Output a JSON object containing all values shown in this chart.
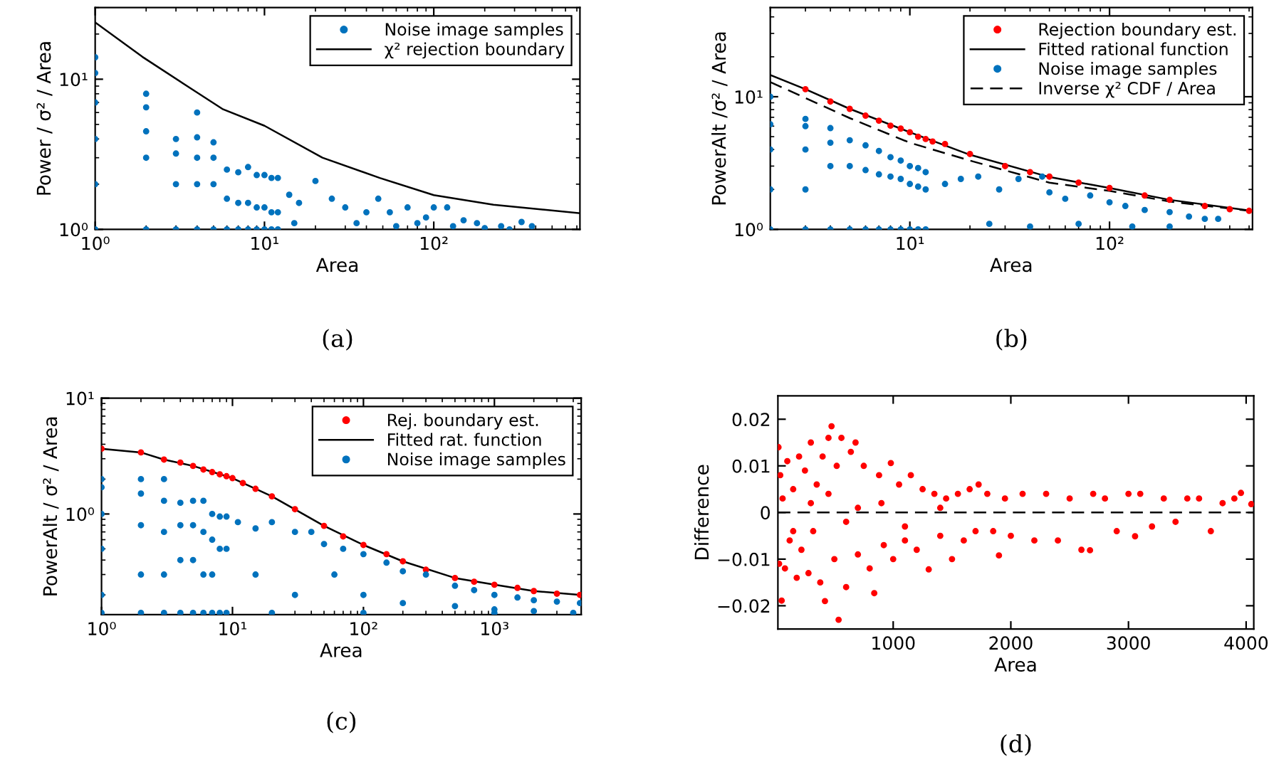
{
  "chart_data": [
    {
      "type": "scatter",
      "xlabel": "Area",
      "ylabel": "Power / σ² / Area",
      "log": "xy",
      "legend": "top right",
      "xlim": [
        1,
        730
      ],
      "ylim": [
        1,
        30
      ],
      "xticks": [
        {
          "value": 1,
          "label": "10⁰"
        },
        {
          "value": 10,
          "label": "10¹"
        },
        {
          "value": 100,
          "label": "10²"
        }
      ],
      "yticks": [
        {
          "value": 1,
          "label": "10⁰"
        },
        {
          "value": 10,
          "label": "10¹"
        }
      ],
      "annotations": [
        "(a)"
      ],
      "series": [
        {
          "name": "Noise image samples",
          "type": "scatter",
          "marker": "circle",
          "color": "#0072bd",
          "x": [
            1,
            1,
            1,
            1,
            1,
            1,
            2,
            2,
            2,
            2,
            2,
            3,
            3,
            3,
            3,
            4,
            4,
            4,
            4,
            4,
            5,
            5,
            5,
            5,
            6,
            6,
            6,
            7,
            7,
            7,
            8,
            8,
            8,
            9,
            9,
            9,
            10,
            10,
            10,
            11,
            11,
            11,
            12,
            12,
            12,
            14,
            16,
            20,
            25,
            30,
            40,
            47,
            55,
            70,
            90,
            100,
            120,
            150,
            180,
            250,
            330,
            380,
            15,
            35,
            60,
            80,
            130,
            200,
            280
          ],
          "values": [
            14,
            11,
            7,
            4,
            2,
            1,
            8,
            6.5,
            4.5,
            3,
            1,
            4.0,
            3.2,
            2,
            1,
            6.0,
            4.1,
            3.0,
            2,
            1,
            3.8,
            3.0,
            2,
            1,
            2.5,
            1.6,
            1,
            2.4,
            1.5,
            1,
            2.6,
            1.5,
            1,
            2.3,
            1.4,
            1,
            2.3,
            1.4,
            1,
            2.2,
            1.3,
            1,
            2.2,
            1.3,
            1,
            1.7,
            1.5,
            2.1,
            1.6,
            1.4,
            1.3,
            1.6,
            1.3,
            1.4,
            1.2,
            1.4,
            1.4,
            1.15,
            1.1,
            1.05,
            1.12,
            1.05,
            1.1,
            1.1,
            1.05,
            1.1,
            1.05,
            1.02,
            1.0
          ]
        },
        {
          "name": "χ² rejection boundary",
          "type": "line",
          "line_style": "solid",
          "color": "#000000",
          "x": [
            1,
            1.9,
            3.6,
            5.7,
            10,
            22,
            48,
            100,
            225,
            730
          ],
          "values": [
            23.9,
            14.1,
            8.8,
            6.3,
            4.9,
            3.0,
            2.2,
            1.69,
            1.46,
            1.28
          ]
        }
      ]
    },
    {
      "type": "scatter",
      "xlabel": "Area",
      "ylabel": "PowerAlt /σ² / Area",
      "log": "xy",
      "legend": "top right",
      "xlim": [
        2,
        520
      ],
      "ylim": [
        1,
        47
      ],
      "xticks": [
        {
          "value": 10,
          "label": "10¹"
        },
        {
          "value": 100,
          "label": "10²"
        }
      ],
      "yticks": [
        {
          "value": 1,
          "label": "10⁰"
        },
        {
          "value": 10,
          "label": "10¹"
        }
      ],
      "annotations": [
        "(b)"
      ],
      "series": [
        {
          "name": "Rejection boundary est.",
          "type": "scatter",
          "marker": "circle",
          "color": "#ff0000",
          "x": [
            3,
            4,
            5,
            6,
            7,
            8,
            9,
            10,
            11,
            12,
            13,
            15,
            20,
            30,
            40,
            50,
            70,
            100,
            150,
            200,
            300,
            400,
            500
          ],
          "values": [
            11.4,
            9.2,
            8.1,
            7.2,
            6.6,
            6.05,
            5.75,
            5.4,
            5.0,
            4.8,
            4.6,
            4.4,
            3.7,
            3.0,
            2.7,
            2.5,
            2.25,
            2.05,
            1.8,
            1.67,
            1.5,
            1.42,
            1.38
          ]
        },
        {
          "name": "Fitted rational function",
          "type": "line",
          "line_style": "solid",
          "color": "#000000",
          "x": [
            2,
            3,
            5,
            10,
            20,
            50,
            100,
            200,
            500
          ],
          "values": [
            14.6,
            11.4,
            8.1,
            5.4,
            3.65,
            2.48,
            2.05,
            1.67,
            1.39
          ]
        },
        {
          "name": "Noise image samples",
          "type": "scatter",
          "marker": "circle",
          "color": "#0072bd",
          "x": [
            2,
            2,
            2,
            2,
            2,
            3,
            3,
            3,
            3,
            3,
            4,
            4,
            4,
            4,
            5,
            5,
            5,
            6,
            6,
            6,
            7,
            7,
            7,
            8,
            8,
            8,
            9,
            9,
            9,
            10,
            10,
            10,
            11,
            11,
            11,
            12,
            12,
            12,
            15,
            18,
            22,
            28,
            35,
            46,
            50,
            60,
            80,
            100,
            120,
            150,
            200,
            250,
            300,
            350,
            25,
            40,
            70,
            130,
            200
          ],
          "values": [
            10,
            6.2,
            4,
            2,
            1,
            6.8,
            6.0,
            4,
            2,
            1,
            5.8,
            4.5,
            3,
            1,
            4.7,
            3,
            1,
            4.3,
            2.8,
            1,
            3.9,
            2.6,
            1,
            3.5,
            2.5,
            1,
            3.3,
            2.4,
            1,
            3.0,
            2.2,
            1,
            2.9,
            2.1,
            1,
            2.7,
            2.0,
            1,
            2.2,
            2.4,
            2.5,
            2.0,
            2.4,
            2.5,
            1.9,
            1.7,
            1.8,
            1.6,
            1.5,
            1.4,
            1.35,
            1.25,
            1.2,
            1.2,
            1.1,
            1.05,
            1.1,
            1.05,
            1.05
          ]
        },
        {
          "name": "Inverse χ² CDF / Area",
          "type": "line",
          "line_style": "dashed",
          "color": "#000000",
          "x": [
            2,
            5,
            10,
            20,
            50,
            100,
            200,
            500
          ],
          "values": [
            12.9,
            6.9,
            4.5,
            3.3,
            2.25,
            1.95,
            1.62,
            1.38
          ]
        }
      ]
    },
    {
      "type": "scatter",
      "xlabel": "Area",
      "ylabel": "PowerAlt / σ² / Area",
      "log": "xy",
      "legend": "top right",
      "xlim": [
        1,
        4600
      ],
      "ylim": [
        0.135,
        10
      ],
      "xticks": [
        {
          "value": 1,
          "label": "10⁰"
        },
        {
          "value": 10,
          "label": "10¹"
        },
        {
          "value": 100,
          "label": "10²"
        },
        {
          "value": 1000,
          "label": "10³"
        }
      ],
      "yticks": [
        {
          "value": 1,
          "label": "10⁰"
        },
        {
          "value": 10,
          "label": "10¹"
        }
      ],
      "annotations": [
        "(c)"
      ],
      "series": [
        {
          "name": "Rej. boundary est.",
          "type": "scatter",
          "marker": "circle",
          "color": "#ff0000",
          "x": [
            1,
            2,
            3,
            4,
            5,
            6,
            7,
            8,
            9,
            10,
            12,
            15,
            20,
            30,
            50,
            70,
            100,
            150,
            200,
            300,
            500,
            700,
            1000,
            1500,
            2000,
            3000,
            4500
          ],
          "values": [
            3.66,
            3.4,
            2.95,
            2.78,
            2.6,
            2.42,
            2.3,
            2.2,
            2.12,
            2.04,
            1.85,
            1.65,
            1.42,
            1.1,
            0.79,
            0.64,
            0.54,
            0.45,
            0.39,
            0.33,
            0.28,
            0.26,
            0.245,
            0.23,
            0.216,
            0.205,
            0.2
          ]
        },
        {
          "name": "Fitted rat. function",
          "type": "line",
          "line_style": "solid",
          "color": "#000000",
          "x": [
            1,
            2,
            3,
            5,
            10,
            20,
            50,
            100,
            200,
            500,
            1000,
            2000,
            4500
          ],
          "values": [
            3.66,
            3.4,
            2.95,
            2.6,
            2.04,
            1.42,
            0.79,
            0.54,
            0.39,
            0.28,
            0.245,
            0.216,
            0.2
          ]
        },
        {
          "name": "Noise image samples",
          "type": "scatter",
          "marker": "circle",
          "color": "#0072bd",
          "x": [
            1,
            1,
            1,
            1,
            1,
            1,
            2,
            2,
            2,
            2,
            2,
            3,
            3,
            3,
            3,
            3,
            4,
            4,
            4,
            4,
            5,
            5,
            5,
            5,
            6,
            6,
            6,
            6,
            7,
            7,
            7,
            7,
            8,
            8,
            8,
            9,
            9,
            9,
            11,
            15,
            20,
            30,
            40,
            50,
            70,
            100,
            150,
            200,
            300,
            500,
            700,
            1000,
            1500,
            2000,
            3000,
            4500,
            15,
            30,
            60,
            100,
            200,
            500,
            1000,
            2000,
            4000,
            20,
            100,
            1000
          ],
          "values": [
            2.0,
            1.7,
            1.0,
            0.5,
            0.2,
            0.14,
            2.0,
            1.5,
            0.8,
            0.3,
            0.14,
            2.0,
            1.3,
            0.7,
            0.3,
            0.14,
            1.25,
            0.8,
            0.4,
            0.14,
            1.3,
            0.8,
            0.4,
            0.14,
            1.3,
            0.7,
            0.3,
            0.14,
            1.0,
            0.6,
            0.3,
            0.14,
            0.95,
            0.5,
            0.14,
            0.95,
            0.5,
            0.14,
            0.85,
            0.75,
            0.85,
            0.7,
            0.7,
            0.55,
            0.5,
            0.45,
            0.38,
            0.32,
            0.3,
            0.24,
            0.22,
            0.2,
            0.19,
            0.18,
            0.175,
            0.17,
            0.3,
            0.2,
            0.3,
            0.2,
            0.17,
            0.16,
            0.15,
            0.145,
            0.14,
            0.14,
            0.14,
            0.14
          ]
        }
      ]
    },
    {
      "type": "scatter",
      "xlabel": "Area",
      "ylabel": "Difference",
      "legend": false,
      "xlim": [
        20,
        4065
      ],
      "ylim": [
        -0.025,
        0.025
      ],
      "xticks": [
        1000,
        2000,
        3000,
        4000
      ],
      "yticks": [
        {
          "value": -0.02,
          "label": "−0.02"
        },
        {
          "value": -0.01,
          "label": "−0.01"
        },
        0,
        0.01,
        0.02
      ],
      "ref_lines": [
        {
          "axis": "y",
          "value": 0,
          "color": "#000000",
          "line_style": "dashed"
        }
      ],
      "annotations": [
        "(d)"
      ],
      "series": [
        {
          "type": "scatter",
          "marker": "circle",
          "color": "#ff0000",
          "x": [
            25,
            30,
            40,
            52,
            60,
            80,
            100,
            120,
            150,
            180,
            200,
            220,
            250,
            280,
            300,
            320,
            350,
            380,
            400,
            420,
            450,
            476,
            500,
            520,
            536,
            560,
            600,
            640,
            680,
            700,
            750,
            800,
            839,
            880,
            920,
            980,
            1000,
            1050,
            1100,
            1150,
            1200,
            1250,
            1302,
            1350,
            1400,
            1450,
            1500,
            1550,
            1600,
            1650,
            1700,
            1726,
            1800,
            1850,
            1899,
            1950,
            2000,
            2100,
            2200,
            2300,
            2400,
            2500,
            2600,
            2673,
            2700,
            2800,
            2900,
            3000,
            3056,
            3100,
            3200,
            3300,
            3400,
            3500,
            3600,
            3700,
            3800,
            3900,
            3956,
            4044,
            150,
            300,
            450,
            600,
            700,
            900,
            1100,
            1400
          ],
          "values": [
            0.014,
            -0.011,
            0.008,
            -0.0189,
            0.003,
            -0.012,
            0.011,
            -0.006,
            0.005,
            -0.014,
            0.012,
            -0.008,
            0.009,
            -0.013,
            0.015,
            -0.004,
            0.006,
            -0.015,
            0.012,
            -0.019,
            0.016,
            0.0185,
            -0.01,
            0.01,
            -0.023,
            0.016,
            -0.016,
            0.013,
            0.015,
            -0.009,
            0.01,
            -0.012,
            -0.0173,
            0.008,
            -0.007,
            0.0106,
            -0.01,
            0.006,
            -0.006,
            0.008,
            -0.008,
            0.005,
            -0.0122,
            0.004,
            -0.005,
            0.003,
            -0.01,
            0.004,
            -0.006,
            0.005,
            -0.004,
            0.006,
            0.004,
            -0.004,
            -0.0092,
            0.003,
            -0.005,
            0.004,
            -0.006,
            0.004,
            -0.006,
            0.003,
            -0.008,
            -0.0081,
            0.004,
            0.003,
            -0.004,
            0.004,
            -0.0051,
            0.004,
            -0.003,
            0.003,
            -0.002,
            0.003,
            0.003,
            -0.004,
            0.002,
            0.003,
            0.0042,
            0.0018,
            -0.004,
            0.002,
            0.004,
            -0.002,
            0.001,
            0.002,
            -0.003,
            0.001
          ]
        }
      ]
    }
  ]
}
